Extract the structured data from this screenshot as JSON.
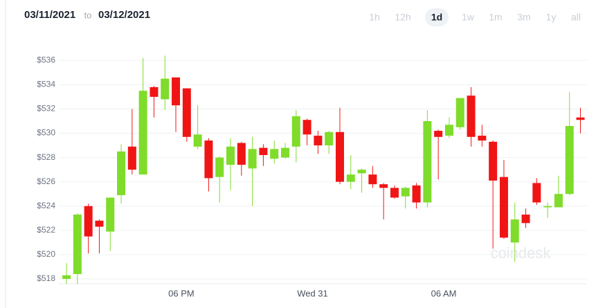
{
  "header": {
    "from": "03/11/2021",
    "to_word": "to",
    "to": "03/12/2021"
  },
  "ranges": [
    "1h",
    "12h",
    "1d",
    "1w",
    "1m",
    "3m",
    "1y",
    "all"
  ],
  "selected_range": 2,
  "chart_data": {
    "type": "candlestick",
    "watermark": "coindesk",
    "up_color": "#7fdc2a",
    "down_color": "#f01515",
    "grid": true,
    "categories": [
      null,
      null,
      null,
      null,
      null,
      null,
      null,
      null,
      null,
      null,
      null,
      null,
      null,
      null,
      null,
      null,
      null,
      null,
      null,
      null,
      null,
      null,
      null,
      null,
      null,
      null,
      null,
      null,
      null,
      null,
      null,
      null,
      null,
      null,
      null,
      null,
      null,
      null,
      null,
      null,
      null,
      null,
      null,
      null,
      null,
      null,
      null,
      null
    ],
    "open": [
      518.0,
      518.4,
      524.0,
      522.8,
      521.9,
      524.9,
      528.9,
      526.6,
      533.8,
      532.8,
      534.6,
      533.7,
      528.9,
      529.4,
      526.4,
      527.4,
      529.2,
      527.1,
      528.8,
      527.9,
      528.0,
      528.9,
      531.1,
      529.8,
      529.0,
      530.1,
      526.0,
      526.7,
      526.6,
      525.8,
      525.5,
      524.8,
      525.7,
      524.3,
      530.2,
      529.8,
      530.5,
      533.1,
      529.8,
      529.3,
      526.4,
      521.0,
      523.3,
      525.9,
      523.9,
      523.9,
      525.0,
      531.3
    ],
    "high": [
      519.3,
      523.4,
      524.2,
      522.9,
      524.7,
      529.1,
      532.0,
      536.2,
      533.9,
      536.4,
      534.6,
      533.7,
      532.3,
      529.6,
      528.1,
      529.6,
      529.3,
      529.7,
      529.1,
      529.4,
      529.2,
      531.9,
      531.2,
      530.2,
      530.2,
      532.1,
      528.2,
      527.1,
      527.3,
      525.9,
      525.7,
      525.6,
      525.9,
      531.9,
      530.3,
      531.3,
      532.9,
      533.8,
      530.7,
      529.4,
      527.8,
      524.3,
      523.8,
      526.3,
      524.3,
      526.5,
      533.4,
      532.1
    ],
    "low": [
      517.6,
      517.6,
      520.1,
      520.1,
      520.3,
      524.2,
      526.6,
      526.6,
      531.3,
      531.9,
      530.1,
      529.3,
      528.7,
      525.2,
      524.3,
      525.3,
      526.5,
      524.0,
      527.3,
      527.5,
      527.9,
      527.6,
      529.0,
      528.3,
      528.3,
      525.8,
      525.4,
      525.1,
      525.5,
      522.9,
      524.6,
      523.8,
      523.8,
      523.9,
      526.2,
      529.6,
      530.3,
      528.9,
      528.9,
      520.5,
      521.3,
      519.4,
      522.2,
      524.1,
      523.0,
      523.9,
      524.9,
      530.0
    ],
    "close": [
      518.3,
      523.3,
      521.5,
      522.3,
      524.7,
      528.5,
      527.0,
      533.5,
      533.0,
      534.5,
      532.3,
      529.7,
      529.9,
      526.3,
      528.0,
      528.9,
      527.4,
      528.7,
      528.2,
      528.7,
      528.8,
      531.4,
      529.9,
      529.0,
      530.1,
      526.0,
      526.6,
      527.0,
      525.8,
      525.5,
      524.7,
      525.5,
      524.3,
      531.0,
      529.7,
      530.7,
      532.9,
      529.7,
      529.4,
      526.1,
      521.4,
      522.9,
      522.6,
      524.3,
      524.0,
      525.0,
      530.6,
      531.1
    ],
    "xlim": [
      -0.7,
      47.6
    ],
    "xticks": [
      {
        "value": 10.5,
        "label": "06 PM"
      },
      {
        "value": 22.5,
        "label": "Wed 31"
      },
      {
        "value": 34.5,
        "label": "06 AM"
      }
    ],
    "ylim": [
      517.6,
      537.1
    ],
    "yticks": [
      {
        "value": 518,
        "label": "$518"
      },
      {
        "value": 520,
        "label": "$520"
      },
      {
        "value": 522,
        "label": "$522"
      },
      {
        "value": 524,
        "label": "$524"
      },
      {
        "value": 526,
        "label": "$526"
      },
      {
        "value": 528,
        "label": "$528"
      },
      {
        "value": 530,
        "label": "$530"
      },
      {
        "value": 532,
        "label": "$532"
      },
      {
        "value": 534,
        "label": "$534"
      },
      {
        "value": 536,
        "label": "$536"
      }
    ]
  }
}
